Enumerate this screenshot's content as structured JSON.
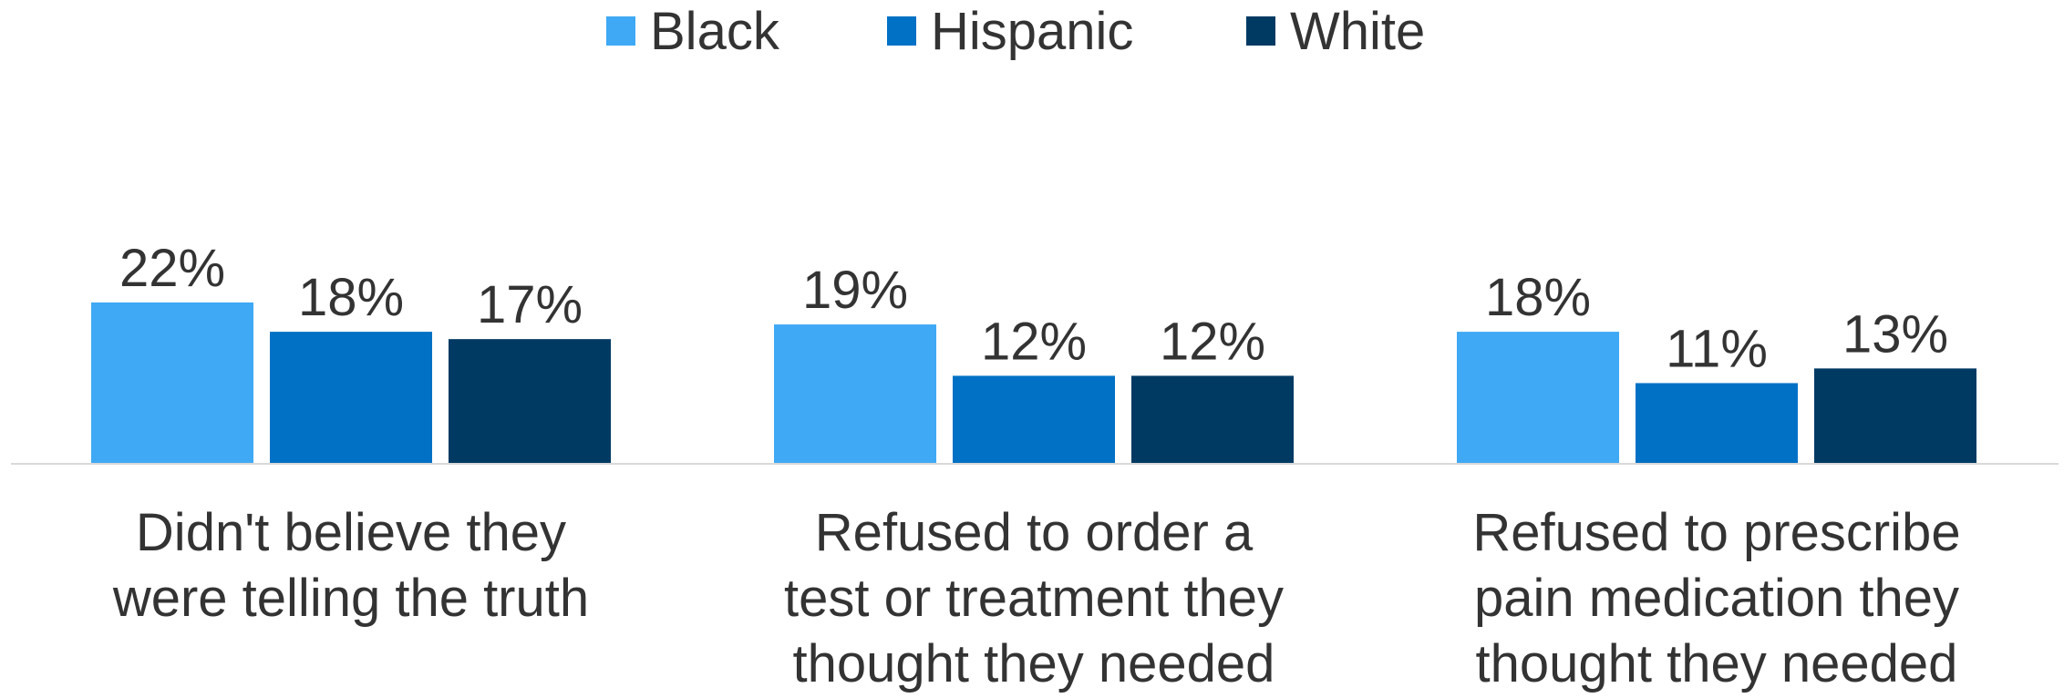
{
  "chart_data": {
    "type": "bar",
    "categories": [
      [
        "Didn't believe they",
        "were telling the truth"
      ],
      [
        "Refused to order a",
        "test or treatment they",
        "thought they needed"
      ],
      [
        "Refused to prescribe",
        "pain medication they",
        "thought they needed"
      ]
    ],
    "series": [
      {
        "name": "Black",
        "color": "#3fa9f5",
        "values": [
          22,
          19,
          18
        ],
        "labels": [
          "22%",
          "19%",
          "18%"
        ]
      },
      {
        "name": "Hispanic",
        "color": "#0071c5",
        "values": [
          18,
          12,
          11
        ],
        "labels": [
          "18%",
          "12%",
          "11%"
        ]
      },
      {
        "name": "White",
        "color": "#003a63",
        "values": [
          17,
          12,
          13
        ],
        "labels": [
          "17%",
          "12%",
          "13%"
        ]
      }
    ],
    "ylim": [
      0,
      30
    ],
    "grid": false,
    "legend_position": "top-center",
    "title": "",
    "xlabel": "",
    "ylabel": ""
  }
}
